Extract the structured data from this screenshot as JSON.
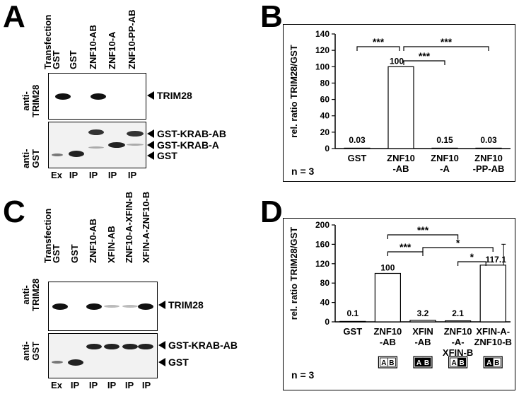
{
  "panels": {
    "A": {
      "letter": "A",
      "header": "Transfection",
      "lanes": [
        "GST",
        "GST",
        "ZNF10-AB",
        "ZNF10-A",
        "ZNF10-PP-AB"
      ],
      "blot1_label": "anti-\nTRIM28",
      "blot2_label": "anti-\nGST",
      "arrows1": [
        "TRIM28"
      ],
      "arrows2": [
        "GST-KRAB-AB",
        "GST-KRAB-A",
        "GST"
      ],
      "bottom": [
        "Ex",
        "IP",
        "IP",
        "IP",
        "IP"
      ]
    },
    "C": {
      "letter": "C",
      "header": "Transfection",
      "lanes": [
        "GST",
        "GST",
        "ZNF10-AB",
        "XFIN-AB",
        "ZNF10-A-XFIN-B",
        "XFIN-A-ZNF10-B"
      ],
      "blot1_label": "anti-\nTRIM28",
      "blot2_label": "anti-\nGST",
      "arrows1": [
        "TRIM28"
      ],
      "arrows2": [
        "GST-KRAB-AB",
        "GST"
      ],
      "bottom": [
        "Ex",
        "IP",
        "IP",
        "IP",
        "IP",
        "IP"
      ]
    },
    "B": {
      "letter": "B",
      "n_label": "n = 3"
    },
    "D": {
      "letter": "D",
      "n_label": "n = 3",
      "domain_label": "AB"
    }
  },
  "chart_data": [
    {
      "type": "bar",
      "panel": "B",
      "ylabel": "rel. ratio TRIM28/GST",
      "ylim": [
        0,
        140
      ],
      "yticks": [
        0,
        20,
        40,
        60,
        80,
        100,
        120,
        140
      ],
      "categories": [
        "GST",
        "ZNF10\n-AB",
        "ZNF10\n-A",
        "ZNF10\n-PP-AB"
      ],
      "values": [
        0.03,
        100,
        0.15,
        0.03
      ],
      "value_labels": [
        "0.03",
        "100",
        "0.15",
        "0.03"
      ],
      "significance": [
        {
          "from": 0,
          "to": 1,
          "label": "***"
        },
        {
          "from": 1,
          "to": 3,
          "label": "***"
        },
        {
          "from": 1,
          "to": 2,
          "label": "***"
        }
      ]
    },
    {
      "type": "bar",
      "panel": "D",
      "ylabel": "rel. ratio TRIM28/GST",
      "ylim": [
        0,
        200
      ],
      "yticks": [
        0,
        40,
        80,
        120,
        160,
        200
      ],
      "categories": [
        "GST",
        "ZNF10\n-AB",
        "XFIN\n-AB",
        "ZNF10\n-A-\nXFIN-B",
        "XFIN-A-\nZNF10-B"
      ],
      "values": [
        0.1,
        100,
        3.2,
        2.1,
        117.1
      ],
      "errors": [
        0,
        0,
        0,
        0,
        43
      ],
      "value_labels": [
        "0.1",
        "100",
        "3.2",
        "2.1",
        "117.1"
      ],
      "domain_boxes": [
        null,
        "light-light",
        "dark-dark",
        "light-dark",
        "dark-light"
      ],
      "significance": [
        {
          "from": 1,
          "to": 3,
          "label": "***"
        },
        {
          "from": 1,
          "to": 2,
          "label": "***"
        },
        {
          "from": 2,
          "to": 4,
          "label": "*"
        },
        {
          "from": 3,
          "to": 4,
          "label": "*"
        }
      ]
    }
  ]
}
